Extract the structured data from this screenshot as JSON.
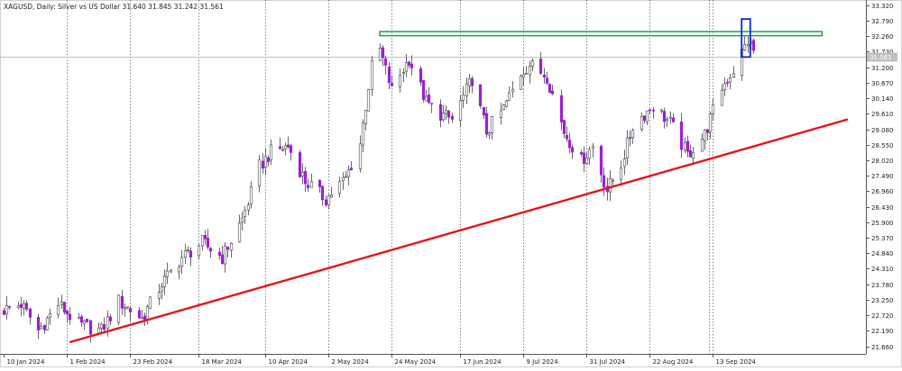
{
  "header": {
    "symbol": "XAGUSD",
    "timeframe": "Daily",
    "description": "Silver vs US Dollar",
    "ohlc": "31.640 31.845 31.242 31.561"
  },
  "colors": {
    "bull_body": "#ffffff",
    "bear_body": "#9d1fd3",
    "wick": "#444444",
    "trendline": "#e8141b",
    "resistance_zone": "#1aa34a",
    "highlight_box": "#0b2ad8",
    "grid": "#333333",
    "price_line": "#bfbfbf",
    "current_price_bg": "#c0c0c0",
    "axis_text": "#222222"
  },
  "chart_data": {
    "type": "candlestick",
    "symbol": "XAGUSD",
    "timeframe": "Daily",
    "ylim": [
      21.4,
      33.5
    ],
    "x_range": [
      "2024-01-10",
      "2024-10-30"
    ],
    "y_ticks": [
      "33.320",
      "32.790",
      "32.260",
      "31.730",
      "31.200",
      "30.670",
      "30.140",
      "29.610",
      "29.080",
      "28.550",
      "28.020",
      "27.490",
      "26.960",
      "26.430",
      "25.900",
      "25.370",
      "24.840",
      "24.310",
      "23.780",
      "23.250",
      "22.720",
      "22.190",
      "21.660"
    ],
    "x_ticks": [
      "10 Jan 2024",
      "1 Feb 2024",
      "23 Feb 2024",
      "18 Mar 2024",
      "10 Apr 2024",
      "2 May 2024",
      "24 May 2024",
      "17 Jun 2024",
      "9 Jul 2024",
      "31 Jul 2024",
      "22 Aug 2024",
      "13 Sep 2024"
    ],
    "current_price": "31.561",
    "current_price_value": 31.561,
    "anchors": [
      [
        "2024-01-10",
        22.9
      ],
      [
        "2024-01-16",
        23.1
      ],
      [
        "2024-01-22",
        22.2
      ],
      [
        "2024-01-29",
        23.1
      ],
      [
        "2024-02-05",
        22.4
      ],
      [
        "2024-02-13",
        22.2
      ],
      [
        "2024-02-19",
        23.2
      ],
      [
        "2024-02-27",
        22.6
      ],
      [
        "2024-03-05",
        23.8
      ],
      [
        "2024-03-12",
        24.7
      ],
      [
        "2024-03-19",
        25.2
      ],
      [
        "2024-03-26",
        24.7
      ],
      [
        "2024-04-02",
        26.0
      ],
      [
        "2024-04-08",
        27.8
      ],
      [
        "2024-04-12",
        28.3
      ],
      [
        "2024-04-18",
        28.5
      ],
      [
        "2024-04-24",
        27.3
      ],
      [
        "2024-05-01",
        26.7
      ],
      [
        "2024-05-08",
        27.4
      ],
      [
        "2024-05-13",
        28.6
      ],
      [
        "2024-05-17",
        31.2
      ],
      [
        "2024-05-20",
        31.8
      ],
      [
        "2024-05-24",
        30.4
      ],
      [
        "2024-05-30",
        31.5
      ],
      [
        "2024-06-05",
        30.0
      ],
      [
        "2024-06-10",
        29.6
      ],
      [
        "2024-06-14",
        29.4
      ],
      [
        "2024-06-21",
        30.8
      ],
      [
        "2024-06-26",
        29.0
      ],
      [
        "2024-07-02",
        29.8
      ],
      [
        "2024-07-08",
        31.0
      ],
      [
        "2024-07-11",
        31.3
      ],
      [
        "2024-07-17",
        30.9
      ],
      [
        "2024-07-23",
        29.0
      ],
      [
        "2024-07-29",
        28.0
      ],
      [
        "2024-08-02",
        28.5
      ],
      [
        "2024-08-07",
        27.0
      ],
      [
        "2024-08-12",
        27.9
      ],
      [
        "2024-08-16",
        29.2
      ],
      [
        "2024-08-23",
        29.9
      ],
      [
        "2024-08-29",
        29.3
      ],
      [
        "2024-09-04",
        28.2
      ],
      [
        "2024-09-10",
        28.9
      ],
      [
        "2024-09-16",
        30.5
      ],
      [
        "2024-09-20",
        31.1
      ],
      [
        "2024-09-25",
        32.1
      ],
      [
        "2024-09-28",
        31.6
      ]
    ],
    "annotations": [
      {
        "kind": "trendline",
        "from": [
          "2024-02-02",
          21.8
        ],
        "to": [
          "2024-10-30",
          29.42
        ]
      },
      {
        "kind": "zone",
        "from": [
          "2024-05-20",
          32.42
        ],
        "to": [
          "2024-10-21",
          32.28
        ]
      },
      {
        "kind": "box",
        "from": [
          "2024-09-23",
          32.85
        ],
        "to": [
          "2024-09-26",
          31.55
        ]
      }
    ]
  }
}
